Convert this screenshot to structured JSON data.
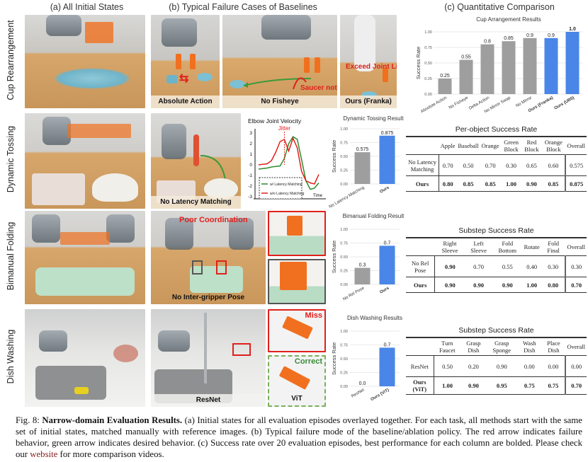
{
  "headers": {
    "a": "(a) All Initial States",
    "b": "(b) Typical Failure Cases of Baselines",
    "c": "(c) Quantitative Comparison"
  },
  "rows": [
    {
      "label": "Cup Rearrangement"
    },
    {
      "label": "Dynamic Tossing"
    },
    {
      "label": "Bimanual Folding"
    },
    {
      "label": "Dish Washing"
    }
  ],
  "photos": {
    "cup": {
      "failures": [
        "Absolute Action",
        "No Fisheye",
        "Ours (Franka)"
      ],
      "annotations": [
        "Saucer not in view",
        "Exceed Joint Limit"
      ]
    },
    "tossing": {
      "failure": "No Latency Matching",
      "annotation": "Jitter"
    },
    "folding": {
      "failure": "No Inter-gripper Pose",
      "annotation": "Poor Coordination"
    },
    "dish": {
      "failure": "ResNet",
      "zoom_labels": [
        "Miss",
        "Correct",
        "ViT"
      ]
    }
  },
  "colors": {
    "baseline": "#9e9e9e",
    "ours": "#4a86e8",
    "failure": "#e0201c",
    "desired": "#3a9a3a"
  },
  "chart_data": [
    {
      "type": "bar",
      "title": "Cup Arrangement Results",
      "ylabel": "Success Rate",
      "ylim": [
        0,
        1.0
      ],
      "yticks": [
        "0.00",
        "0.25",
        "0.50",
        "0.75",
        "1.00"
      ],
      "grid": true,
      "categories": [
        "Absolute Action",
        "No Fisheye",
        "Delta Action",
        "No Mirror Swap",
        "No Mirror",
        "Ours (Franka)",
        "Ours (UR5)"
      ],
      "values": [
        0.25,
        0.55,
        0.8,
        0.85,
        0.9,
        0.9,
        1.0
      ],
      "value_labels": [
        "0.25",
        "0.55",
        "0.8",
        "0.85",
        "0.9",
        "0.9",
        "1.0"
      ],
      "highlight": [
        false,
        false,
        false,
        false,
        false,
        true,
        true
      ]
    },
    {
      "type": "line",
      "title": "Elbow Joint Velocity",
      "xlabel": "Time",
      "ylim": [
        -3,
        3
      ],
      "yticks": [
        "-3",
        "-2",
        "-1",
        "0",
        "1",
        "2",
        "3"
      ],
      "annotation": "Jitter",
      "legend": "bottom-left",
      "series": [
        {
          "name": "w/ Latency Matching",
          "color": "#2e8b2e",
          "values": [
            -0.4,
            -0.35,
            -0.3,
            -0.2,
            -0.15,
            -0.1,
            0.6,
            2.0,
            2.65,
            2.4,
            0.5,
            -1.5,
            -2.3,
            -2.2,
            -1.7
          ]
        },
        {
          "name": "w/o Latency Matching",
          "color": "#e0201c",
          "values": [
            0.0,
            0.05,
            0.1,
            0.4,
            1.2,
            2.2,
            2.4,
            1.3,
            2.5,
            1.6,
            -0.6,
            -1.5,
            -1.7,
            -1.8,
            -0.9
          ]
        }
      ]
    },
    {
      "type": "bar",
      "title": "Dynamic Tossing Results",
      "ylabel": "Success Rate",
      "ylim": [
        0,
        1.0
      ],
      "yticks": [
        "0.00",
        "0.25",
        "0.50",
        "0.75",
        "1.00"
      ],
      "grid": true,
      "categories": [
        "No Latency Matching",
        "Ours"
      ],
      "values": [
        0.575,
        0.875
      ],
      "value_labels": [
        "0.575",
        "0.875"
      ],
      "highlight": [
        false,
        true
      ]
    },
    {
      "type": "bar",
      "title": "Bimanual Folding Results",
      "ylabel": "Success Rate",
      "ylim": [
        0,
        1.0
      ],
      "yticks": [
        "0.00",
        "0.25",
        "0.50",
        "0.75",
        "1.00"
      ],
      "grid": true,
      "categories": [
        "No Rel Pose",
        "Ours"
      ],
      "values": [
        0.3,
        0.7
      ],
      "value_labels": [
        "0.3",
        "0.7"
      ],
      "highlight": [
        false,
        true
      ]
    },
    {
      "type": "bar",
      "title": "Dish Washing Results",
      "ylabel": "Success Rate",
      "ylim": [
        0,
        1.0
      ],
      "yticks": [
        "0.00",
        "0.25",
        "0.50",
        "0.75",
        "1.00"
      ],
      "grid": true,
      "categories": [
        "ResNet",
        "Ours (ViT)"
      ],
      "values": [
        0.0,
        0.7
      ],
      "value_labels": [
        "0.0",
        "0.7"
      ],
      "highlight": [
        false,
        true
      ]
    }
  ],
  "tables": [
    {
      "title": "Per-object Success Rate",
      "columns": [
        "",
        "Apple",
        "Baseball",
        "Orange",
        "Green Block",
        "Red Block",
        "Orange Block",
        "Overall"
      ],
      "rows": [
        {
          "name": "No Latency Matching",
          "cells": [
            "0.70",
            "0.50",
            "0.70",
            "0.30",
            "0.65",
            "0.60",
            "0.575"
          ],
          "bold": [
            false,
            false,
            false,
            false,
            false,
            false,
            false
          ]
        },
        {
          "name": "Ours",
          "cells": [
            "0.80",
            "0.85",
            "0.85",
            "1.00",
            "0.90",
            "0.85",
            "0.875"
          ],
          "bold": [
            true,
            true,
            true,
            true,
            true,
            true,
            true
          ]
        }
      ]
    },
    {
      "title": "Substep Success Rate",
      "columns": [
        "",
        "Right Sleeve",
        "Left Sleeve",
        "Fold Bottom",
        "Rotate",
        "Fold Final",
        "Overall"
      ],
      "rows": [
        {
          "name": "No Rel Pose",
          "cells": [
            "0.90",
            "0.70",
            "0.55",
            "0.40",
            "0.30",
            "0.30"
          ],
          "bold": [
            true,
            false,
            false,
            false,
            false,
            false
          ]
        },
        {
          "name": "Ours",
          "cells": [
            "0.90",
            "0.90",
            "0.90",
            "1.00",
            "0.80",
            "0.70"
          ],
          "bold": [
            true,
            true,
            true,
            true,
            true,
            true
          ]
        }
      ]
    },
    {
      "title": "Substep Success Rate",
      "columns": [
        "",
        "Turn Faucet",
        "Grasp Dish",
        "Grasp Sponge",
        "Wash Dish",
        "Place Dish",
        "Overall"
      ],
      "rows": [
        {
          "name": "ResNet",
          "cells": [
            "0.50",
            "0.20",
            "0.90",
            "0.00",
            "0.00",
            "0.00"
          ],
          "bold": [
            false,
            false,
            false,
            false,
            false,
            false
          ]
        },
        {
          "name": "Ours (ViT)",
          "cells": [
            "1.00",
            "0.90",
            "0.95",
            "0.75",
            "0.75",
            "0.70"
          ],
          "bold": [
            true,
            true,
            true,
            true,
            true,
            true
          ]
        }
      ]
    }
  ],
  "caption": {
    "fig": "Fig. 8: ",
    "title": "Narrow-domain Evaluation Results.",
    "text": " (a) Initial states for all evaluation episodes overlayed together. For each task, all methods start with the same set of initial states, matched manually with reference images. (b) Typical failure mode of the baseline/ablation policy. The red arrow indicates failure behavior, green arrow indicates desired behavior. (c) Success rate over 20 evaluation episodes, best performance for each column are bolded. Please check our ",
    "link": "website",
    "end": " for more comparison videos."
  }
}
